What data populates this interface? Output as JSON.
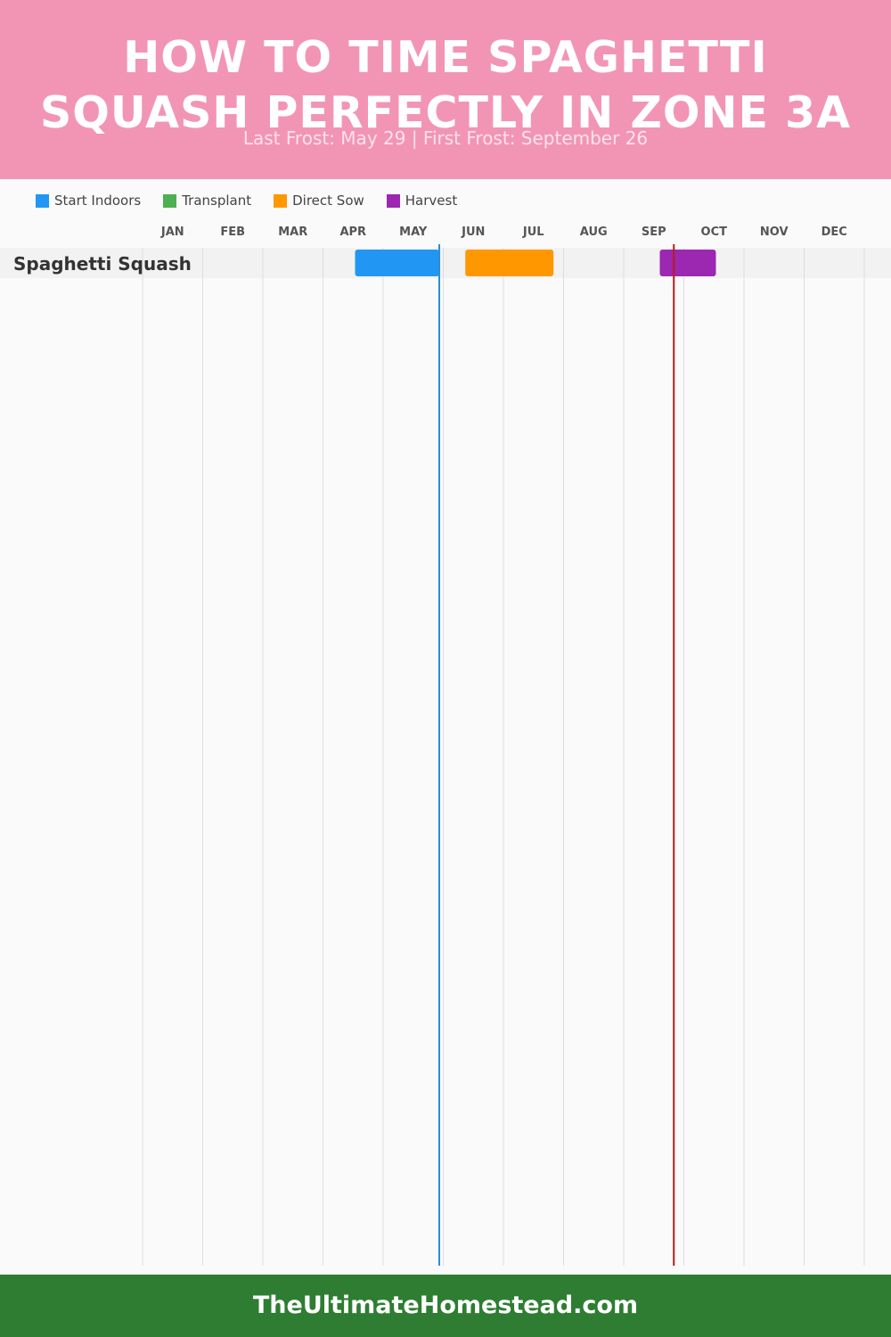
{
  "header": {
    "title": "HOW TO TIME SPAGHETTI SQUASH PERFECTLY IN ZONE 3A",
    "subtitle": "Last Frost: May 29 | First Frost: September 26"
  },
  "footer": {
    "site": "TheUltimateHomestead.com"
  },
  "colors": {
    "header_bg": "#f295b4",
    "footer_bg": "#2e7d32",
    "last_frost_line": "#2a8fd6",
    "first_frost_line": "#b71c1c"
  },
  "chart_data": {
    "type": "gantt",
    "title": "HOW TO TIME SPAGHETTI SQUASH PERFECTLY IN ZONE 3A",
    "subtitle": "Last Frost: May 29 | First Frost: September 26",
    "months": [
      "JAN",
      "FEB",
      "MAR",
      "APR",
      "MAY",
      "JUN",
      "JUL",
      "AUG",
      "SEP",
      "OCT",
      "NOV",
      "DEC"
    ],
    "legend": [
      {
        "name": "Start Indoors",
        "color": "#2196f3"
      },
      {
        "name": "Transplant",
        "color": "#4caf50"
      },
      {
        "name": "Direct Sow",
        "color": "#ff9800"
      },
      {
        "name": "Harvest",
        "color": "#9c27b0"
      }
    ],
    "crops": [
      {
        "name": "Spaghetti Squash",
        "periods": [
          {
            "activity": "Start Indoors",
            "start": "Apr 17",
            "end": "May 29"
          },
          {
            "activity": "Direct Sow",
            "start": "Jun 12",
            "end": "Jul 26"
          },
          {
            "activity": "Harvest",
            "start": "Sep 19",
            "end": "Oct 17"
          }
        ]
      }
    ],
    "frost_lines": [
      {
        "label": "Last Frost",
        "date": "May 29"
      },
      {
        "label": "First Frost",
        "date": "September 26"
      }
    ],
    "legend_position": "top-left",
    "grid": true
  }
}
